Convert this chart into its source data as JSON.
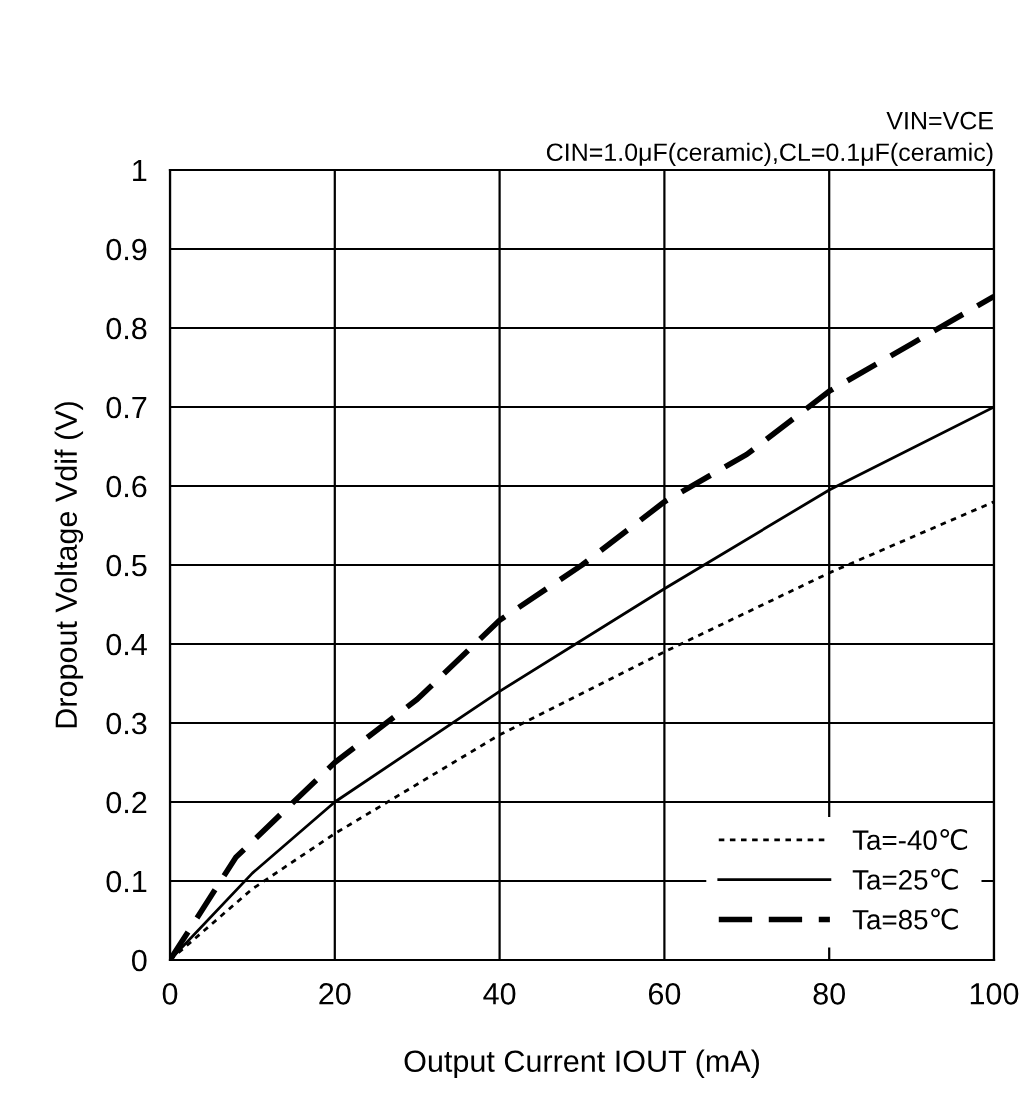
{
  "chart_data": {
    "type": "line",
    "xlabel": "Output Current IOUT (mA)",
    "ylabel": "Dropout Voltage Vdif (V)",
    "annotations": [
      "VIN=VCE",
      "CIN=1.0μF(ceramic),CL=0.1μF(ceramic)"
    ],
    "xlim": [
      0,
      100
    ],
    "xticks": [
      0,
      20,
      40,
      60,
      80,
      100
    ],
    "ylim": [
      0,
      1
    ],
    "yticks": [
      0,
      0.1,
      0.2,
      0.3,
      0.4,
      0.5,
      0.6,
      0.7,
      0.8,
      0.9,
      1
    ],
    "grid": true,
    "legend": "bottom right",
    "marker": "none",
    "series": [
      {
        "name": "Ta=-40℃",
        "color": "#000000",
        "line_style": "dotted",
        "x": [
          0,
          10,
          20,
          40,
          60,
          80,
          100
        ],
        "values": [
          0,
          0.09,
          0.16,
          0.285,
          0.39,
          0.49,
          0.58
        ]
      },
      {
        "name": "Ta=25℃",
        "color": "#000000",
        "line_style": "solid",
        "x": [
          0,
          10,
          20,
          40,
          60,
          80,
          100
        ],
        "values": [
          0,
          0.11,
          0.2,
          0.34,
          0.47,
          0.595,
          0.7
        ]
      },
      {
        "name": "Ta=85℃",
        "color": "#000000",
        "line_style": "dashed",
        "x": [
          0,
          8,
          20,
          30,
          40,
          50,
          60,
          70,
          80,
          90,
          100
        ],
        "values": [
          0,
          0.13,
          0.25,
          0.33,
          0.43,
          0.5,
          0.58,
          0.64,
          0.72,
          0.78,
          0.84
        ]
      }
    ]
  }
}
